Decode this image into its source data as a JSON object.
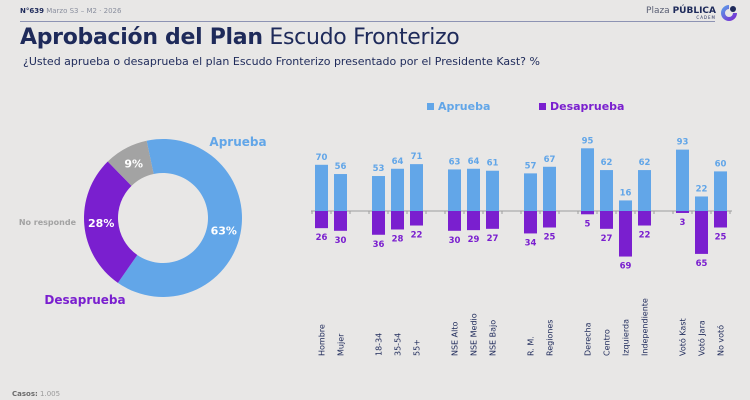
{
  "header": {
    "edition_number": "N°639",
    "edition_date": "Marzo S3 – M2 · 2026",
    "brand_light": "Plaza",
    "brand_bold": "PÚBLICA",
    "brand_sub": "CADEM"
  },
  "title": {
    "bold": "Aprobación del Plan",
    "regular": "Escudo Fronterizo"
  },
  "subtitle": "¿Usted aprueba o desaprueba el plan Escudo Fronterizo presentado por el Presidente Kast? %",
  "footer": {
    "label": "Casos:",
    "value": "1.005"
  },
  "colors": {
    "approve": "#62a6e8",
    "disapprove": "#7a1fcf",
    "no_answer": "#a3a3a3",
    "title": "#1e2a5a"
  },
  "chart_data": [
    {
      "type": "pie",
      "title": "",
      "labels": [
        "Aprueba",
        "Desaprueba",
        "No responde"
      ],
      "values": [
        63,
        28,
        9
      ],
      "value_labels": [
        "63%",
        "28%",
        "9%"
      ],
      "donut": true
    },
    {
      "type": "bar",
      "title": "",
      "legend": [
        "Aprueba",
        "Desaprueba"
      ],
      "legend_position": "top",
      "groups": [
        {
          "categories": [
            "Hombre",
            "Mujer"
          ]
        },
        {
          "categories": [
            "18-34",
            "35-54",
            "55+"
          ]
        },
        {
          "categories": [
            "NSE Alto",
            "NSE Medio",
            "NSE Bajo"
          ]
        },
        {
          "categories": [
            "R. M.",
            "Regiones"
          ]
        },
        {
          "categories": [
            "Derecha",
            "Centro",
            "Izquierda",
            "Independiente"
          ]
        },
        {
          "categories": [
            "Votó Kast",
            "Votó Jara",
            "No votó"
          ]
        }
      ],
      "categories": [
        "Hombre",
        "Mujer",
        "18-34",
        "35-54",
        "55+",
        "NSE Alto",
        "NSE Medio",
        "NSE Bajo",
        "R. M.",
        "Regiones",
        "Derecha",
        "Centro",
        "Izquierda",
        "Independiente",
        "Votó Kast",
        "Votó Jara",
        "No votó"
      ],
      "series": [
        {
          "name": "Aprueba",
          "values": [
            70,
            56,
            53,
            64,
            71,
            63,
            64,
            61,
            57,
            67,
            95,
            62,
            16,
            62,
            93,
            22,
            60
          ]
        },
        {
          "name": "Desaprueba",
          "values": [
            26,
            30,
            36,
            28,
            22,
            30,
            29,
            27,
            34,
            25,
            5,
            27,
            69,
            22,
            3,
            65,
            25
          ]
        }
      ],
      "diverging": true,
      "grid": false
    }
  ]
}
